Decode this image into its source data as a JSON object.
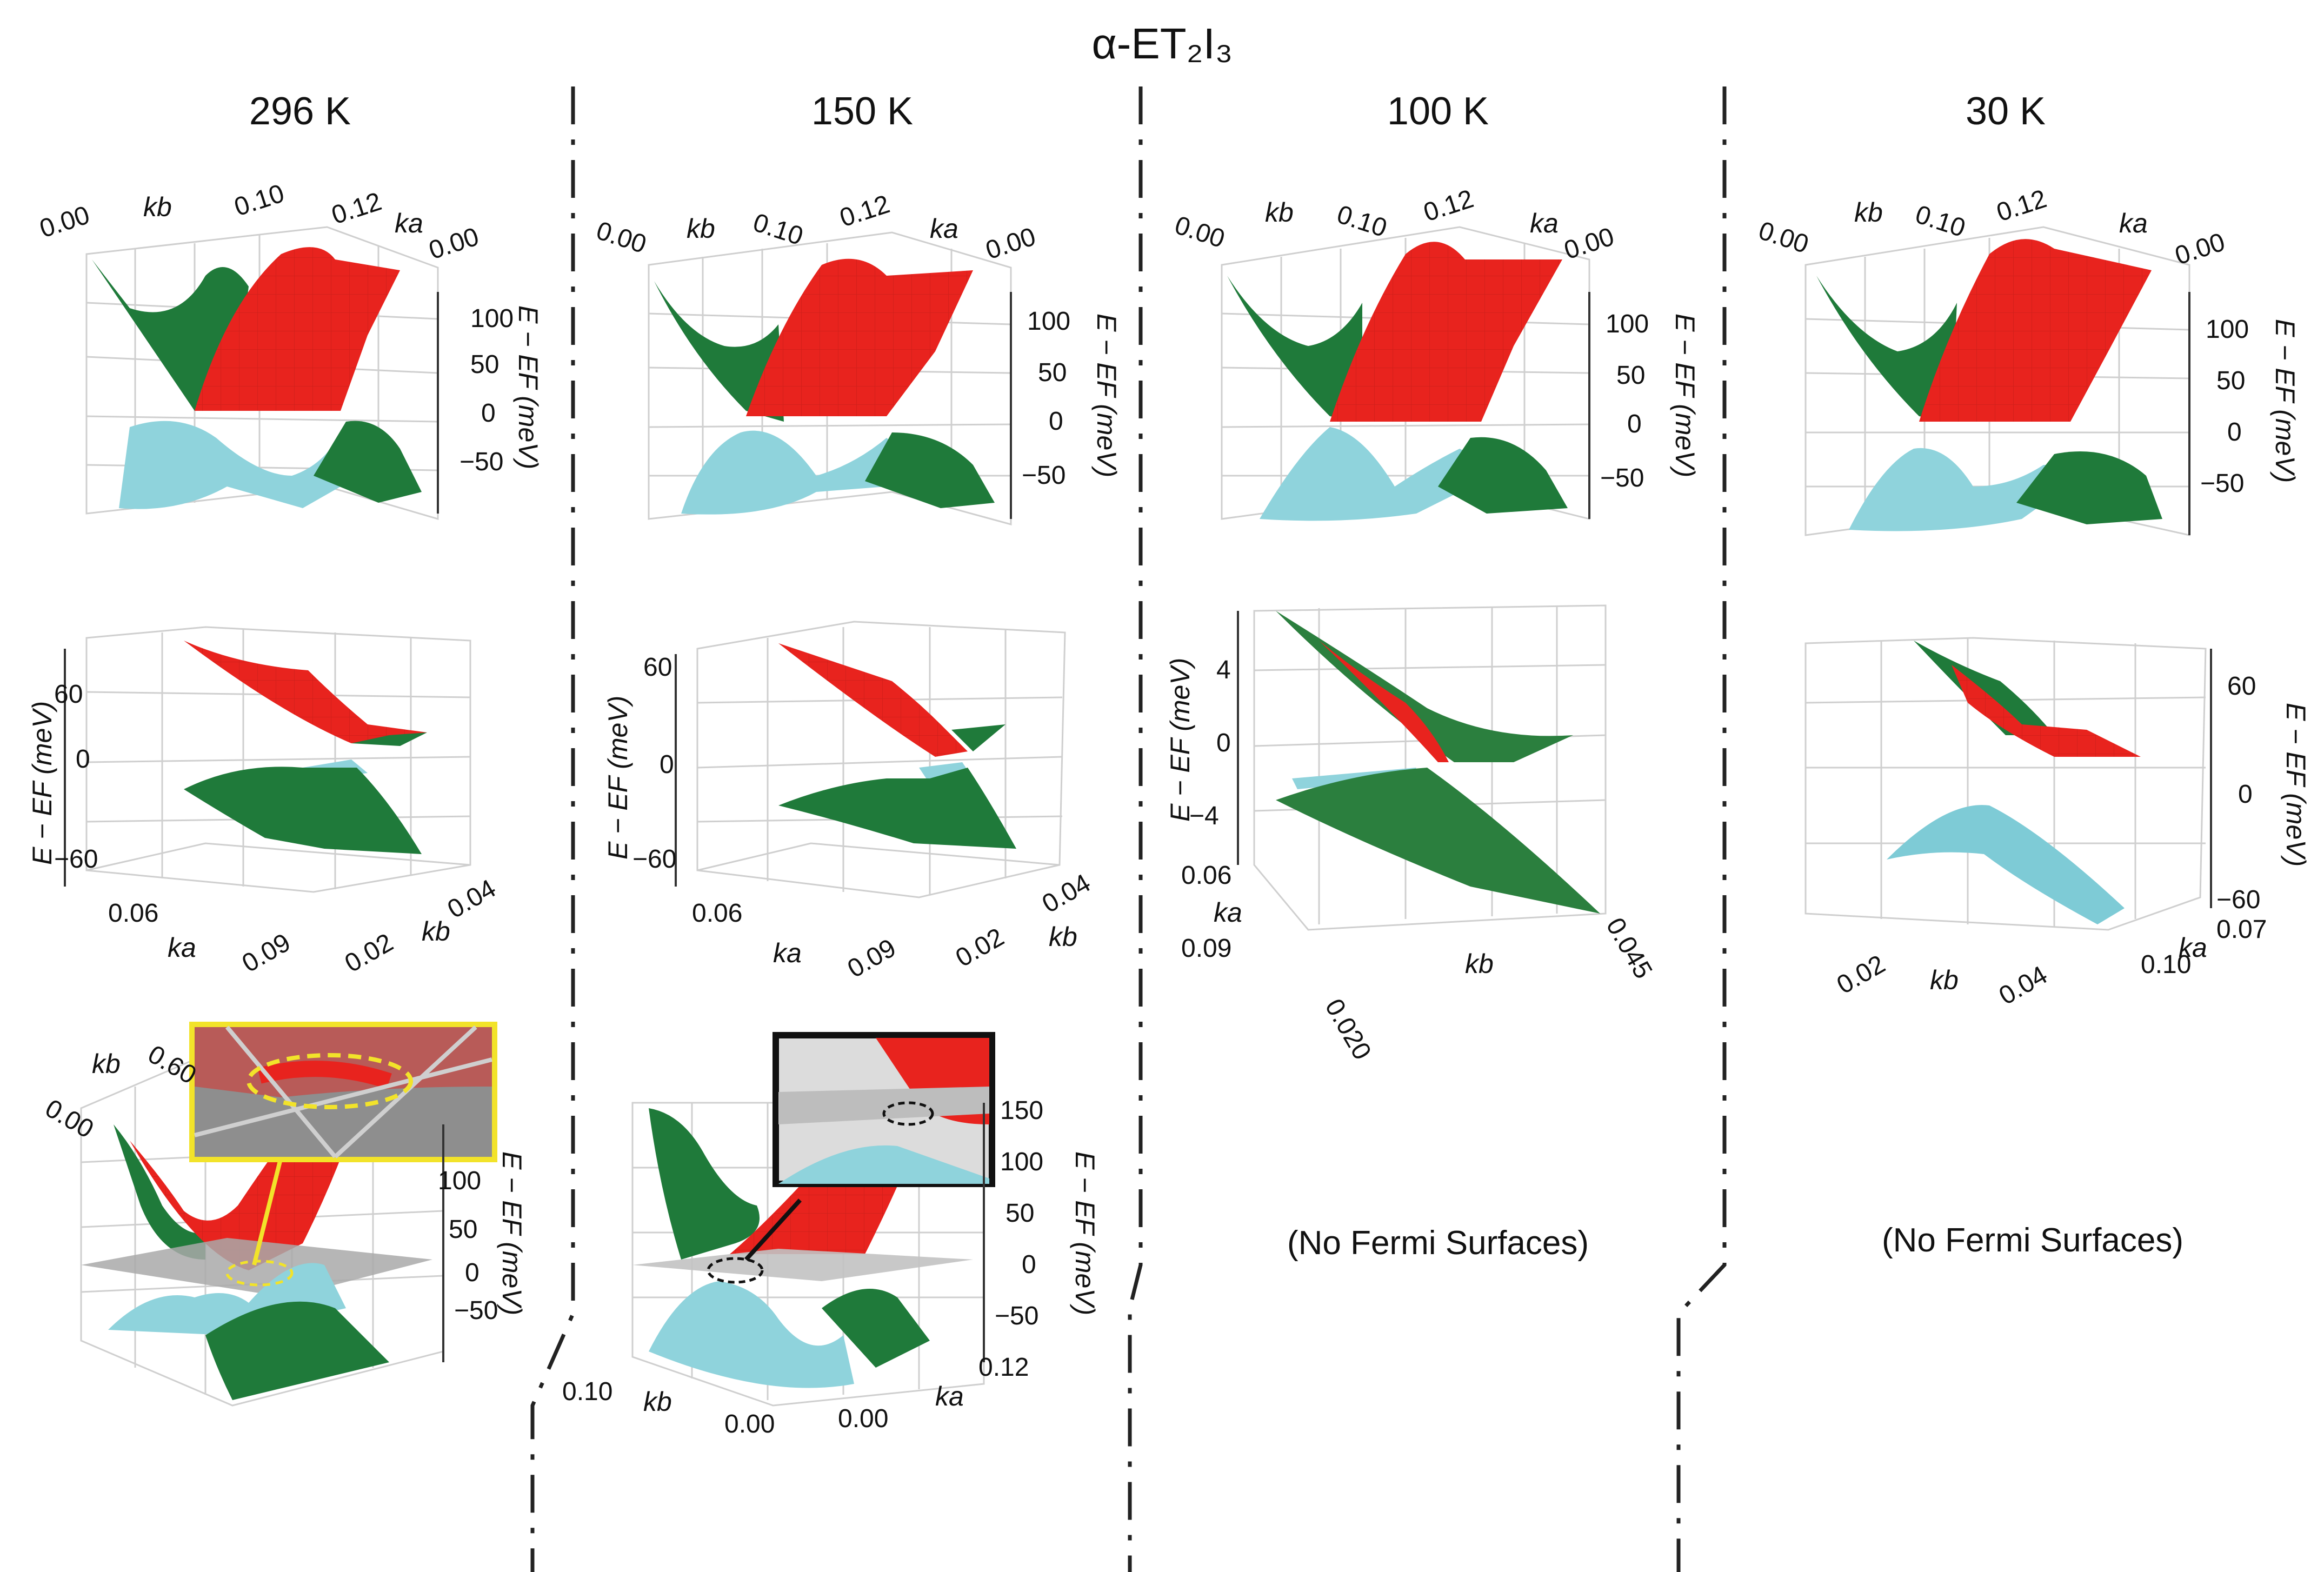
{
  "figure_title": "α-ET₂I₃",
  "colors": {
    "conduction": "#e8231e",
    "valence_green": "#1f7a3a",
    "valence_cyan": "#8fd3dc",
    "fermi_plane": "#a9a9a9",
    "inset_yellow": "#f2e32a",
    "inset_black": "#111111"
  },
  "chart_data": [
    {
      "type": "surface3d",
      "panel": "296 K full band",
      "column_title": "296 K",
      "axes": {
        "x": {
          "label": "kb",
          "ticks": [
            "0.00",
            "0.10"
          ]
        },
        "y": {
          "label": "ka",
          "ticks": [
            "0.12",
            "0.00"
          ]
        },
        "z": {
          "label": "E − EF (meV)",
          "ticks": [
            "100",
            "50",
            "0",
            "−50"
          ]
        }
      },
      "series": [
        "conduction band (red)",
        "valence band (green)",
        "valence band (cyan)"
      ]
    },
    {
      "type": "surface3d",
      "panel": "296 K zoom near Dirac point",
      "axes": {
        "z": {
          "label": "E − EF (meV)",
          "ticks": [
            "60",
            "0",
            "−60"
          ]
        },
        "x": {
          "label": "ka",
          "ticks": [
            "0.06",
            "0.09"
          ]
        },
        "y": {
          "label": "kb",
          "ticks": [
            "0.04",
            "0.02"
          ]
        }
      }
    },
    {
      "type": "surface3d",
      "panel": "296 K Fermi surface",
      "axes": {
        "x": {
          "label": "kb",
          "ticks": [
            "0.00",
            "0.60"
          ]
        },
        "z": {
          "label": "E − EF (meV)",
          "ticks": [
            "100",
            "50",
            "0",
            "−50"
          ]
        }
      },
      "fermi_plane": true,
      "inset": "yellow"
    },
    {
      "type": "surface3d",
      "panel": "150 K full band",
      "column_title": "150 K",
      "axes": {
        "x": {
          "label": "kb",
          "ticks": [
            "0.00",
            "0.10"
          ]
        },
        "y": {
          "label": "ka",
          "ticks": [
            "0.12",
            "0.00"
          ]
        },
        "z": {
          "label": "E − EF (meV)",
          "ticks": [
            "100",
            "50",
            "0",
            "−50"
          ]
        }
      }
    },
    {
      "type": "surface3d",
      "panel": "150 K zoom near Dirac point",
      "axes": {
        "z": {
          "label": "E − EF (meV)",
          "ticks": [
            "60",
            "0",
            "−60"
          ]
        },
        "x": {
          "label": "ka",
          "ticks": [
            "0.06",
            "0.09"
          ]
        },
        "y": {
          "label": "kb",
          "ticks": [
            "0.04",
            "0.02"
          ]
        }
      }
    },
    {
      "type": "surface3d",
      "panel": "150 K Fermi surface",
      "axes": {
        "x": {
          "label": "kb",
          "ticks": [
            "0.10",
            "0.00"
          ]
        },
        "y": {
          "label": "ka",
          "ticks": [
            "0.12",
            "0.00"
          ]
        },
        "z": {
          "label": "E − EF (meV)",
          "ticks": [
            "150",
            "100",
            "50",
            "0",
            "−50"
          ]
        }
      },
      "fermi_plane": true,
      "inset": "black"
    },
    {
      "type": "surface3d",
      "panel": "100 K full band",
      "column_title": "100 K",
      "axes": {
        "x": {
          "label": "kb",
          "ticks": [
            "0.00",
            "0.10"
          ]
        },
        "y": {
          "label": "ka",
          "ticks": [
            "0.12",
            "0.00"
          ]
        },
        "z": {
          "label": "E − EF (meV)",
          "ticks": [
            "100",
            "50",
            "0",
            "−50"
          ]
        }
      }
    },
    {
      "type": "surface3d",
      "panel": "100 K zoom near Dirac point",
      "axes": {
        "z": {
          "label": "E − EF (meV)",
          "ticks": [
            "4",
            "0",
            "−4"
          ]
        },
        "y": {
          "label": "ka",
          "ticks": [
            "0.06",
            "0.09"
          ]
        },
        "x": {
          "label": "kb",
          "ticks": [
            "0.020",
            "0.045"
          ]
        }
      }
    },
    {
      "type": "surface3d",
      "panel": "30 K full band",
      "column_title": "30 K",
      "axes": {
        "x": {
          "label": "kb",
          "ticks": [
            "0.00",
            "0.10"
          ]
        },
        "y": {
          "label": "ka",
          "ticks": [
            "0.12",
            "0.00"
          ]
        },
        "z": {
          "label": "E − EF (meV)",
          "ticks": [
            "100",
            "50",
            "0",
            "−50"
          ]
        }
      }
    },
    {
      "type": "surface3d",
      "panel": "30 K zoom near Dirac point",
      "axes": {
        "z": {
          "label": "E − EF (meV)",
          "ticks": [
            "60",
            "0",
            "−60"
          ]
        },
        "x": {
          "label": "kb",
          "ticks": [
            "0.02",
            "0.04"
          ]
        },
        "y": {
          "label": "ka",
          "ticks": [
            "0.07",
            "0.10"
          ]
        }
      }
    }
  ],
  "no_fermi_note": "(No Fermi Surfaces)"
}
